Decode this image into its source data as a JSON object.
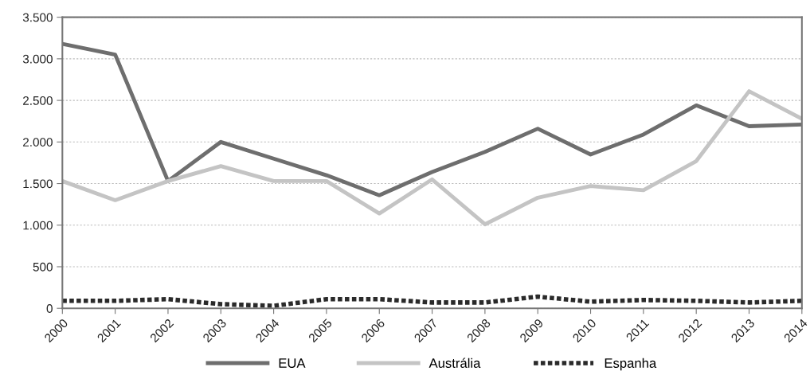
{
  "chart_data": {
    "type": "line",
    "categories": [
      "2000",
      "2001",
      "2002",
      "2003",
      "2004",
      "2005",
      "2006",
      "2007",
      "2008",
      "2009",
      "2010",
      "2011",
      "2012",
      "2013",
      "2014"
    ],
    "series": [
      {
        "name": "EUA",
        "color": "#6e6e6e",
        "line_style": "solid",
        "values": [
          3180,
          3050,
          1530,
          2000,
          1800,
          1600,
          1360,
          1640,
          1880,
          2160,
          1850,
          2090,
          2440,
          2190,
          2210
        ]
      },
      {
        "name": "Austrália",
        "color": "#c4c4c4",
        "line_style": "solid",
        "values": [
          1530,
          1300,
          1530,
          1710,
          1530,
          1530,
          1140,
          1550,
          1010,
          1330,
          1470,
          1420,
          1770,
          2610,
          2280
        ]
      },
      {
        "name": "Espanha",
        "color": "#2a2a2a",
        "line_style": "dotted",
        "values": [
          90,
          90,
          110,
          50,
          30,
          110,
          110,
          70,
          70,
          140,
          80,
          100,
          90,
          70,
          90
        ]
      }
    ],
    "ylim": [
      0,
      3500
    ],
    "yticks": [
      {
        "value": 0,
        "label": "0"
      },
      {
        "value": 500,
        "label": "500"
      },
      {
        "value": 1000,
        "label": "1.000"
      },
      {
        "value": 1500,
        "label": "1.500"
      },
      {
        "value": 2000,
        "label": "2.000"
      },
      {
        "value": 2500,
        "label": "2.500"
      },
      {
        "value": 3000,
        "label": "3.000"
      },
      {
        "value": 3500,
        "label": "3.500"
      }
    ],
    "grid": "y",
    "legend": "bottom",
    "marker": "none"
  }
}
